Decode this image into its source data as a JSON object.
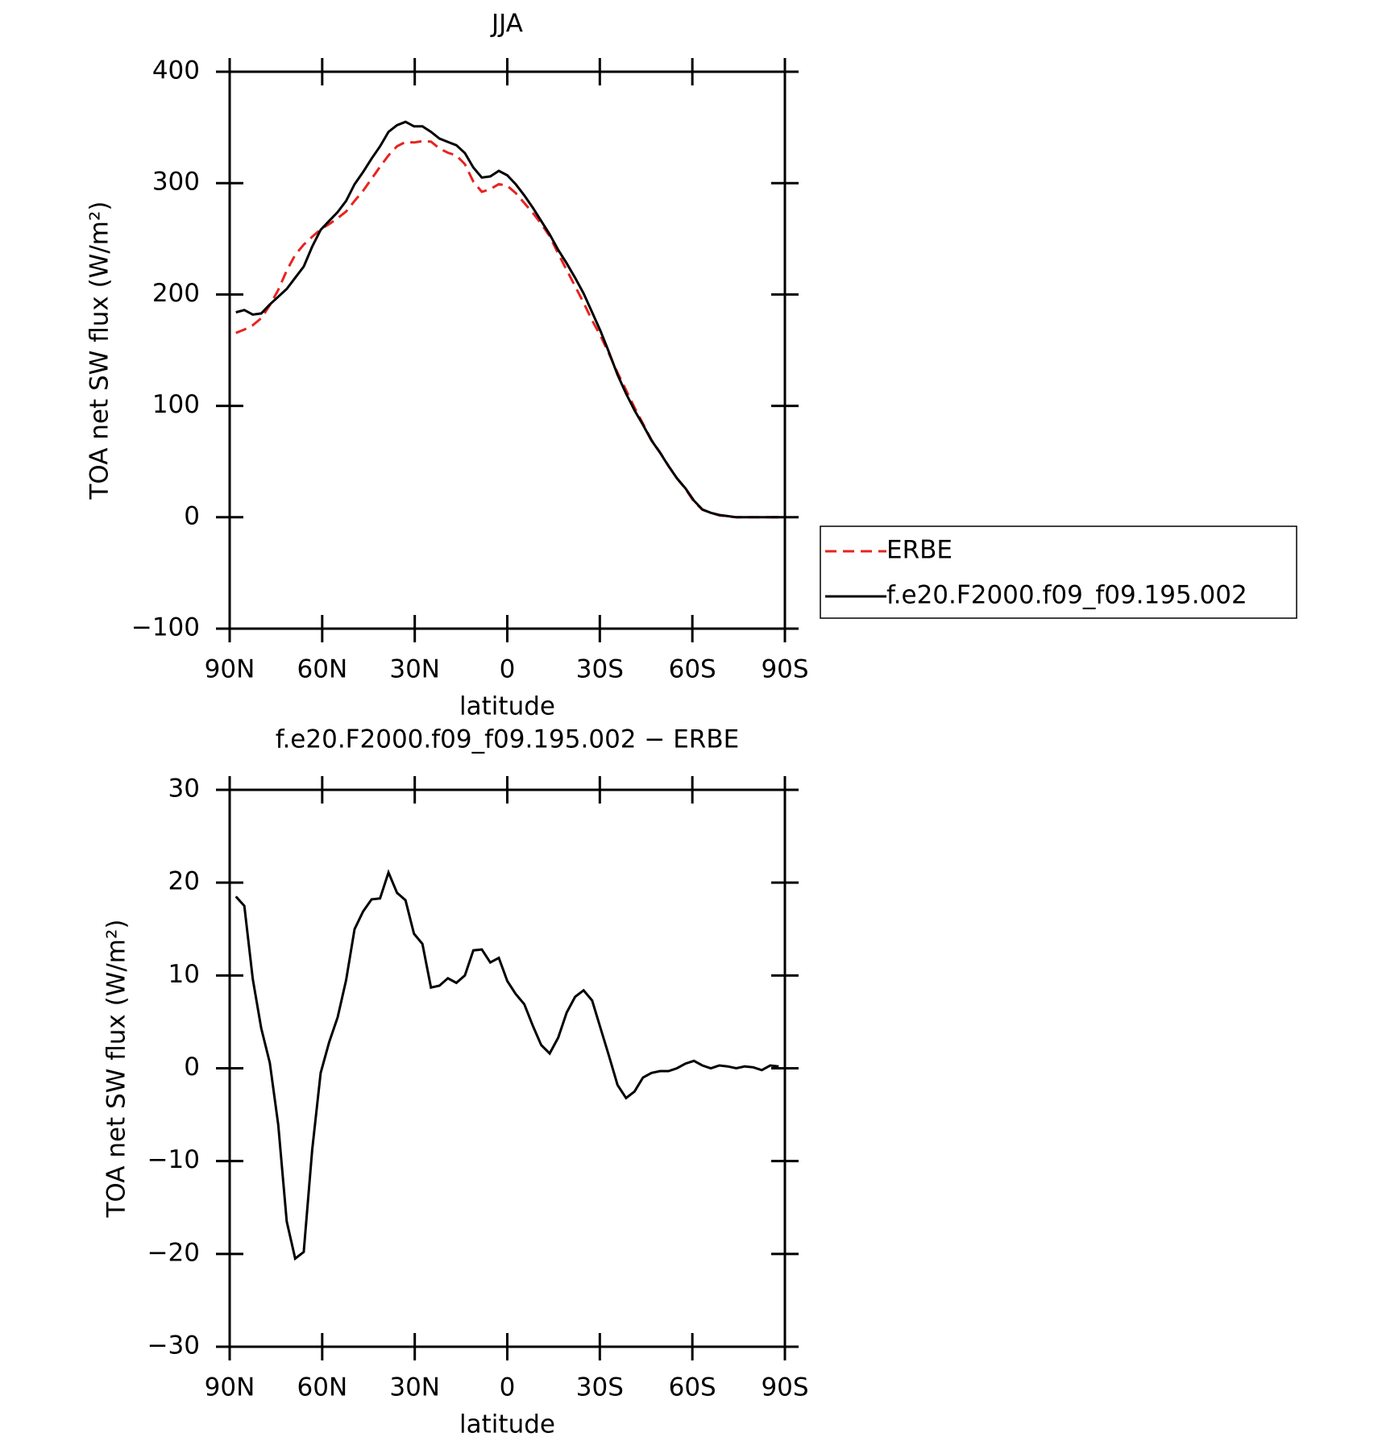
{
  "chart_data": [
    {
      "type": "line",
      "title": "JJA",
      "xlabel": "latitude",
      "ylabel": "TOA net SW flux (W/m²)",
      "x": [
        88,
        85.25,
        82.5,
        79.75,
        77,
        74.25,
        71.5,
        68.75,
        66,
        63.25,
        60.5,
        57.75,
        55,
        52.25,
        49.5,
        46.75,
        44,
        41.25,
        38.5,
        35.75,
        33,
        30.25,
        27.5,
        24.75,
        22,
        19.25,
        16.5,
        13.75,
        11,
        8.25,
        5.5,
        2.75,
        0,
        -2.75,
        -5.5,
        -8.25,
        -11,
        -13.75,
        -16.5,
        -19.25,
        -22,
        -24.75,
        -27.5,
        -30.25,
        -33,
        -35.75,
        -38.5,
        -41.25,
        -44,
        -46.75,
        -49.5,
        -52.25,
        -55,
        -57.75,
        -60.5,
        -63.25,
        -66,
        -68.75,
        -71.5,
        -74.25,
        -77,
        -79.75,
        -82.5,
        -85.25,
        -88
      ],
      "series": [
        {
          "name": "ERBE",
          "color": "#e8231f",
          "line_style": "dashed",
          "values": [
            165.5,
            168.5,
            172.4,
            178.7,
            190.4,
            204.1,
            221.5,
            235.5,
            244.8,
            251.8,
            258.5,
            263.2,
            268.5,
            274.5,
            284,
            293.1,
            303.8,
            314.7,
            324.9,
            333.1,
            336.9,
            336.5,
            337.6,
            337.3,
            331.1,
            327.3,
            324.8,
            317,
            301.3,
            292.2,
            294.6,
            299.1,
            297.6,
            291,
            282.1,
            273.4,
            263.5,
            252.4,
            236.7,
            222,
            207.3,
            192.6,
            176.7,
            162.7,
            146.7,
            129.8,
            114.2,
            98.5,
            84,
            69.5,
            58.3,
            46.3,
            35,
            25.5,
            14.2,
            6.7,
            4,
            1.7,
            0.8,
            0,
            0,
            0,
            0,
            0,
            0
          ]
        },
        {
          "name": "f.e20.F2000.f09_f09.195.002",
          "color": "#000000",
          "line_style": "solid",
          "values": [
            184,
            186,
            182,
            183,
            191,
            198,
            205,
            215,
            225,
            243,
            258,
            266,
            274,
            284,
            299,
            310,
            322,
            333,
            346,
            352,
            355,
            351,
            351,
            346,
            340,
            337,
            334,
            327,
            314,
            305,
            306,
            311,
            307,
            299,
            289,
            278,
            266,
            254,
            240,
            228,
            215,
            201,
            184,
            167,
            148,
            128,
            111,
            96,
            83,
            69,
            58,
            46,
            35,
            26,
            15,
            7,
            4,
            2,
            1,
            0,
            0,
            0,
            0,
            0,
            0
          ]
        }
      ],
      "xlim": [
        90,
        -90
      ],
      "xticks": [
        {
          "value": 90,
          "label": "90N"
        },
        {
          "value": 60,
          "label": "60N"
        },
        {
          "value": 30,
          "label": "30N"
        },
        0,
        {
          "value": -30,
          "label": "30S"
        },
        {
          "value": -60,
          "label": "60S"
        },
        {
          "value": -90,
          "label": "90S"
        }
      ],
      "ylim": [
        -100,
        400
      ],
      "yticks": [
        {
          "value": -100,
          "label": "−100"
        },
        0,
        100,
        200,
        300,
        400
      ],
      "legend": "right"
    },
    {
      "type": "line",
      "title": "f.e20.F2000.f09_f09.195.002 − ERBE",
      "xlabel": "latitude",
      "ylabel": "TOA net SW flux (W/m²)",
      "x": [
        88,
        85.25,
        82.5,
        79.75,
        77,
        74.25,
        71.5,
        68.75,
        66,
        63.25,
        60.5,
        57.75,
        55,
        52.25,
        49.5,
        46.75,
        44,
        41.25,
        38.5,
        35.75,
        33,
        30.25,
        27.5,
        24.75,
        22,
        19.25,
        16.5,
        13.75,
        11,
        8.25,
        5.5,
        2.75,
        0,
        -2.75,
        -5.5,
        -8.25,
        -11,
        -13.75,
        -16.5,
        -19.25,
        -22,
        -24.75,
        -27.5,
        -30.25,
        -33,
        -35.75,
        -38.5,
        -41.25,
        -44,
        -46.75,
        -49.5,
        -52.25,
        -55,
        -57.75,
        -60.5,
        -63.25,
        -66,
        -68.75,
        -71.5,
        -74.25,
        -77,
        -79.75,
        -82.5,
        -85.25,
        -88
      ],
      "color": "#000000",
      "values": [
        18.5,
        17.5,
        9.6,
        4.3,
        0.6,
        -6.1,
        -16.5,
        -20.5,
        -19.8,
        -8.8,
        -0.5,
        2.8,
        5.5,
        9.5,
        15,
        16.9,
        18.2,
        18.3,
        21.1,
        18.9,
        18.1,
        14.5,
        13.4,
        8.7,
        8.9,
        9.7,
        9.2,
        10,
        12.7,
        12.8,
        11.4,
        11.9,
        9.4,
        8,
        6.9,
        4.6,
        2.5,
        1.6,
        3.3,
        6,
        7.7,
        8.4,
        7.3,
        4.3,
        1.3,
        -1.8,
        -3.2,
        -2.5,
        -1,
        -0.5,
        -0.3,
        -0.3,
        0,
        0.5,
        0.8,
        0.3,
        0,
        0.3,
        0.2,
        0,
        0.2,
        0.1,
        -0.2,
        0.3,
        0.2
      ],
      "xlim": [
        90,
        -90
      ],
      "xticks": [
        {
          "value": 90,
          "label": "90N"
        },
        {
          "value": 60,
          "label": "60N"
        },
        {
          "value": 30,
          "label": "30N"
        },
        0,
        {
          "value": -30,
          "label": "30S"
        },
        {
          "value": -60,
          "label": "60S"
        },
        {
          "value": -90,
          "label": "90S"
        }
      ],
      "ylim": [
        -30,
        30
      ],
      "yticks": [
        {
          "value": -30,
          "label": "−30"
        },
        {
          "value": -20,
          "label": "−20"
        },
        {
          "value": -10,
          "label": "−10"
        },
        0,
        10,
        20,
        30
      ]
    }
  ]
}
